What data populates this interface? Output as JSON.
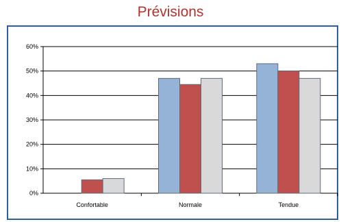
{
  "chart_data": {
    "type": "bar",
    "title": "Prévisions",
    "categories": [
      "Confortable",
      "Normale",
      "Tendue"
    ],
    "series": [
      {
        "values": [
          0,
          47,
          53
        ],
        "color": "#95b3d7"
      },
      {
        "values": [
          5.5,
          44.5,
          50
        ],
        "color": "#c0504d"
      },
      {
        "values": [
          6,
          47,
          47
        ],
        "color": "#d9d9d9"
      }
    ],
    "ylim": [
      0,
      60
    ],
    "yticks": [
      0,
      10,
      20,
      30,
      40,
      50,
      60
    ],
    "ytick_labels": [
      "0%",
      "10%",
      "20%",
      "30%",
      "40%",
      "50%",
      "60%"
    ],
    "grid": true,
    "xlabel": "",
    "ylabel": ""
  }
}
